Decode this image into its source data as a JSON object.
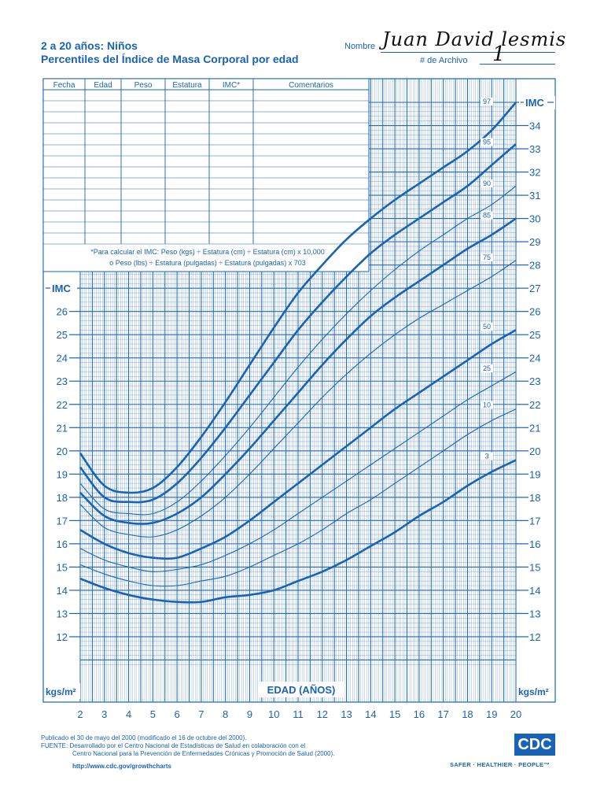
{
  "header": {
    "title_line1": "2 a 20 años: Niños",
    "title_line2": "Percentiles del Índice de Masa Corporal por edad",
    "name_label": "Nombre",
    "name_value": "Juan David lesmis",
    "file_label": "# de Archivo",
    "file_value": "1"
  },
  "record_table": {
    "columns": [
      "Fecha",
      "Edad",
      "Peso",
      "Estatura",
      "IMC*",
      "Comentarios"
    ],
    "formula_line1": "*Para calcular el IMC:  Peso (kgs) ÷ Estatura (cm) ÷ Estatura (cm) x 10,000",
    "formula_line2": "o Peso (lbs) ÷ Estatura (pulgadas) ÷ Estatura (pulgadas) x 703"
  },
  "axis_labels": {
    "imc": "IMC",
    "units": "kgs/m²",
    "xlabel": "EDAD (AÑOS)"
  },
  "footer": {
    "published": "Publicado el 30 de mayo del 2000 (modificado el 16 de octubre del 2000).",
    "source1": "FUENTE: Desarrollado por el Centro Nacional de Estadísticas de Salud en colaboración con el",
    "source2": "Centro Nacional para la Prevención de Enfermedades Crónicas y Promoción de Salud (2000).",
    "url": "http://www.cdc.gov/growthcharts",
    "logo": "CDC",
    "slogan": "SAFER · HEALTHIER · PEOPLE™"
  },
  "colors": {
    "accent": "#1a63b4"
  },
  "chart_data": {
    "type": "line",
    "title": "Percentiles del Índice de Masa Corporal por edad",
    "xlabel": "EDAD (AÑOS)",
    "ylabel": "IMC",
    "xlim": [
      2,
      20
    ],
    "ylim": [
      12,
      35
    ],
    "x_ticks": [
      2,
      3,
      4,
      5,
      6,
      7,
      8,
      9,
      10,
      11,
      12,
      13,
      14,
      15,
      16,
      17,
      18,
      19,
      20
    ],
    "y_ticks_left": [
      12,
      13,
      14,
      15,
      16,
      17,
      18,
      19,
      20,
      21,
      22,
      23,
      24,
      25,
      26,
      27
    ],
    "y_ticks_right": [
      12,
      13,
      14,
      15,
      16,
      17,
      18,
      19,
      20,
      21,
      22,
      23,
      24,
      25,
      26,
      27,
      28,
      29,
      30,
      31,
      32,
      33,
      34,
      35
    ],
    "grid": true,
    "x": [
      2,
      3,
      4,
      5,
      6,
      7,
      8,
      9,
      10,
      11,
      12,
      13,
      14,
      15,
      16,
      17,
      18,
      19,
      20
    ],
    "series": [
      {
        "name": "97",
        "bold": true,
        "values": [
          19.9,
          18.5,
          18.2,
          18.4,
          19.3,
          20.6,
          22.1,
          23.7,
          25.3,
          26.8,
          28.0,
          29.1,
          30.0,
          30.8,
          31.5,
          32.2,
          32.9,
          33.8,
          35.0
        ]
      },
      {
        "name": "95",
        "bold": true,
        "values": [
          19.3,
          18.0,
          17.8,
          17.9,
          18.6,
          19.7,
          21.0,
          22.4,
          23.8,
          25.2,
          26.4,
          27.5,
          28.5,
          29.3,
          30.0,
          30.7,
          31.4,
          32.3,
          33.2
        ]
      },
      {
        "name": "90",
        "bold": false,
        "values": [
          18.6,
          17.5,
          17.3,
          17.3,
          17.8,
          18.7,
          19.8,
          21.0,
          22.3,
          23.6,
          24.8,
          25.9,
          26.9,
          27.8,
          28.6,
          29.3,
          30.0,
          30.6,
          31.4
        ]
      },
      {
        "name": "85",
        "bold": true,
        "values": [
          18.2,
          17.2,
          16.9,
          16.9,
          17.3,
          18.0,
          19.0,
          20.1,
          21.3,
          22.5,
          23.7,
          24.8,
          25.8,
          26.6,
          27.3,
          28.0,
          28.7,
          29.3,
          30.0
        ]
      },
      {
        "name": "75",
        "bold": false,
        "values": [
          17.7,
          16.7,
          16.4,
          16.3,
          16.6,
          17.2,
          18.0,
          19.0,
          20.1,
          21.2,
          22.3,
          23.3,
          24.2,
          25.0,
          25.7,
          26.3,
          26.9,
          27.5,
          28.2
        ]
      },
      {
        "name": "50",
        "bold": true,
        "values": [
          16.6,
          16.0,
          15.6,
          15.4,
          15.4,
          15.8,
          16.3,
          17.0,
          17.8,
          18.6,
          19.4,
          20.2,
          21.0,
          21.8,
          22.5,
          23.2,
          23.9,
          24.6,
          25.2
        ]
      },
      {
        "name": "25",
        "bold": false,
        "values": [
          15.8,
          15.3,
          15.0,
          14.8,
          14.9,
          15.1,
          15.5,
          16.0,
          16.6,
          17.3,
          18.0,
          18.7,
          19.4,
          20.1,
          20.8,
          21.5,
          22.2,
          22.8,
          23.4
        ]
      },
      {
        "name": "10",
        "bold": false,
        "values": [
          15.1,
          14.7,
          14.4,
          14.2,
          14.2,
          14.4,
          14.6,
          15.0,
          15.5,
          16.0,
          16.6,
          17.3,
          17.9,
          18.6,
          19.3,
          20.0,
          20.7,
          21.3,
          21.8
        ]
      },
      {
        "name": "3",
        "bold": true,
        "values": [
          14.5,
          14.1,
          13.8,
          13.6,
          13.5,
          13.5,
          13.7,
          13.8,
          14.0,
          14.4,
          14.8,
          15.3,
          15.9,
          16.5,
          17.2,
          17.8,
          18.5,
          19.1,
          19.6
        ]
      }
    ]
  }
}
